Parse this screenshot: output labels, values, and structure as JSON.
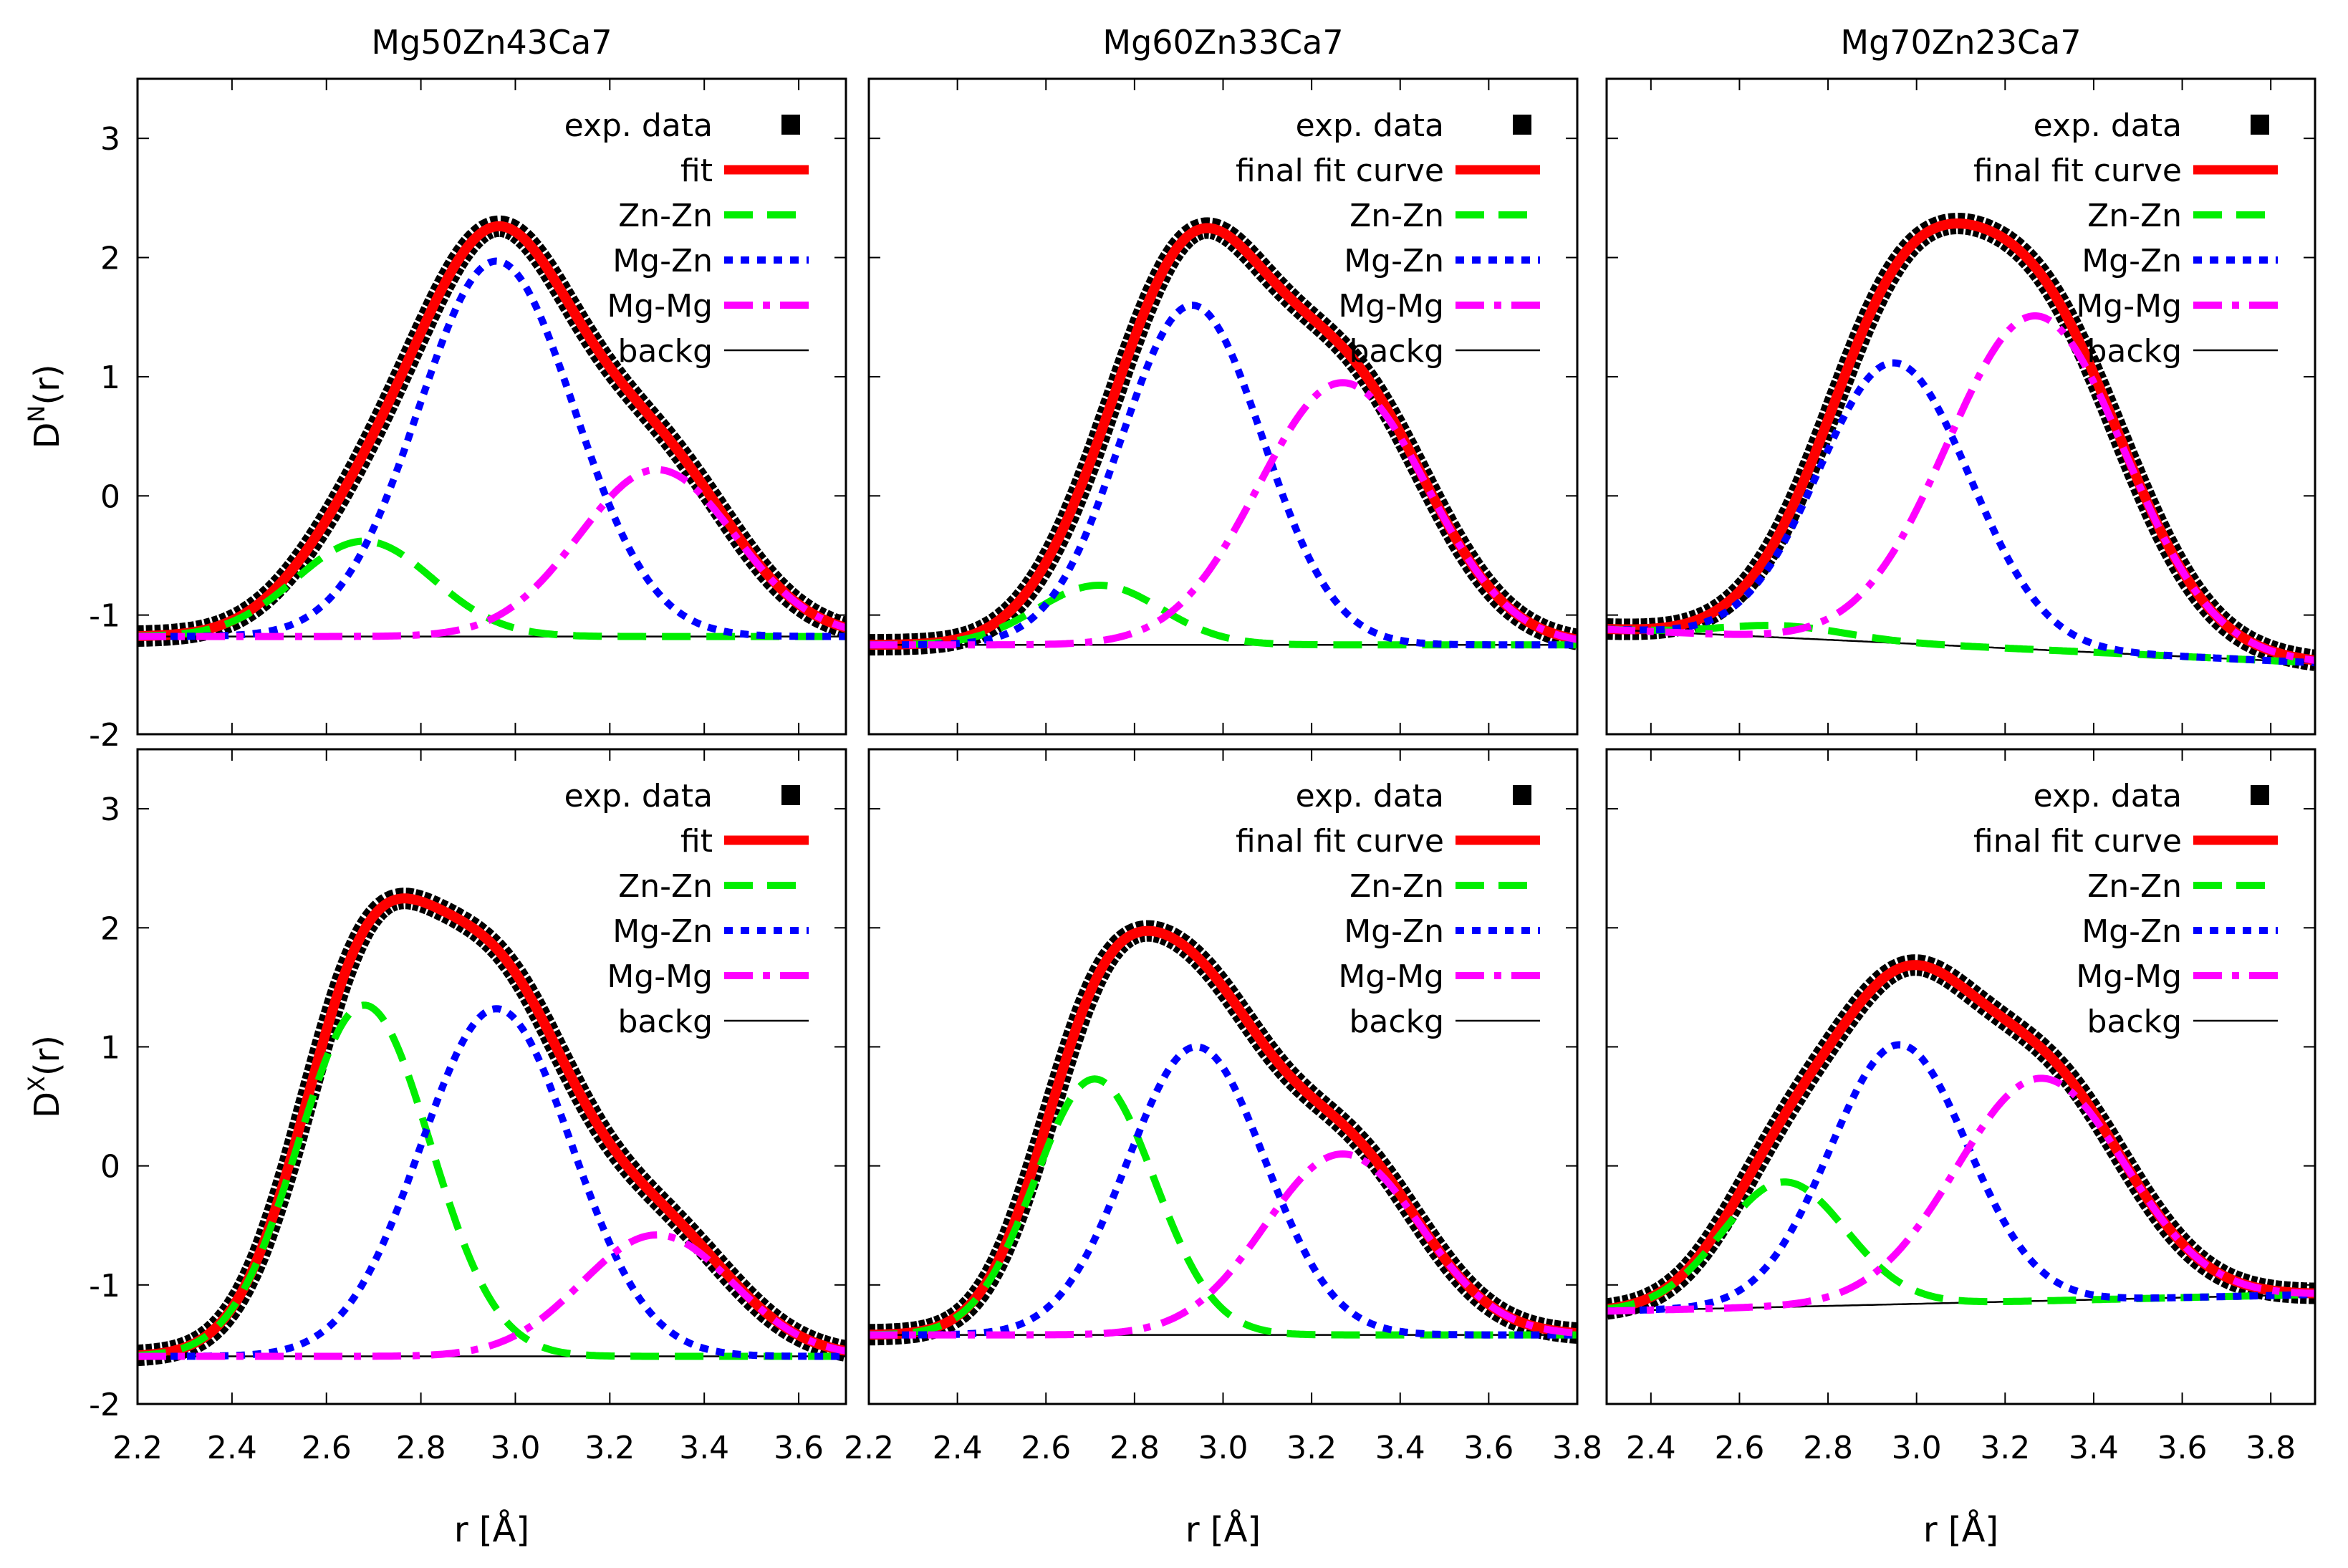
{
  "colors": {
    "exp": "#000000",
    "fit": "#ff0000",
    "znzn": "#00ee00",
    "mgzn": "#0000ff",
    "mgmg": "#ff00ff",
    "backg": "#000000"
  },
  "chart_data": [
    {
      "type": "line",
      "title": "Mg50Zn43Ca7",
      "ylabel": "DN(r)",
      "xlabel": "",
      "xlim": [
        2.2,
        3.7
      ],
      "ylim": [
        -2,
        3.5
      ],
      "xticks": [],
      "yticks": [
        "3",
        "2",
        "1",
        "0",
        "-1",
        "-2"
      ],
      "legend": [
        "exp. data",
        "fit",
        "Zn-Zn",
        "Mg-Zn",
        "Mg-Mg",
        "backg"
      ],
      "background": [
        [
          2.2,
          -1.18
        ],
        [
          3.7,
          -1.18
        ]
      ],
      "peaks": {
        "Zn-Zn": {
          "center": 2.68,
          "height": 0.8,
          "width": 0.145
        },
        "Mg-Zn": {
          "center": 2.96,
          "height": 3.15,
          "width": 0.165
        },
        "Mg-Mg": {
          "center": 3.3,
          "height": 1.4,
          "width": 0.165
        }
      }
    },
    {
      "type": "line",
      "title": "Mg60Zn33Ca7",
      "ylabel": "",
      "xlabel": "",
      "xlim": [
        2.2,
        3.8
      ],
      "ylim": [
        -2,
        3.5
      ],
      "xticks": [],
      "yticks": [],
      "legend": [
        "exp. data",
        "final fit curve",
        "Zn-Zn",
        "Mg-Zn",
        "Mg-Mg",
        "backg"
      ],
      "background": [
        [
          2.2,
          -1.25
        ],
        [
          3.8,
          -1.25
        ]
      ],
      "peaks": {
        "Zn-Zn": {
          "center": 2.72,
          "height": 0.5,
          "width": 0.14
        },
        "Mg-Zn": {
          "center": 2.93,
          "height": 2.85,
          "width": 0.16
        },
        "Mg-Mg": {
          "center": 3.27,
          "height": 2.2,
          "width": 0.19
        }
      }
    },
    {
      "type": "line",
      "title": "Mg70Zn23Ca7",
      "ylabel": "",
      "xlabel": "",
      "xlim": [
        2.3,
        3.9
      ],
      "ylim": [
        -2,
        3.5
      ],
      "xticks": [],
      "yticks": [],
      "legend": [
        "exp. data",
        "final fit curve",
        "Zn-Zn",
        "Mg-Zn",
        "Mg-Mg",
        "backg"
      ],
      "background": [
        [
          2.3,
          -1.12
        ],
        [
          3.9,
          -1.4
        ]
      ],
      "peaks": {
        "Zn-Zn": {
          "center": 2.7,
          "height": 0.1,
          "width": 0.14
        },
        "Mg-Zn": {
          "center": 2.95,
          "height": 2.35,
          "width": 0.17
        },
        "Mg-Mg": {
          "center": 3.27,
          "height": 2.8,
          "width": 0.2
        }
      }
    },
    {
      "type": "line",
      "title": "",
      "ylabel": "DX(r)",
      "xlabel": "r [Å]",
      "xlim": [
        2.2,
        3.7
      ],
      "ylim": [
        -2,
        3.5
      ],
      "xticks": [
        "2.2",
        "2.4",
        "2.6",
        "2.8",
        "3.0",
        "3.2",
        "3.4",
        "3.6"
      ],
      "yticks": [
        "3",
        "2",
        "1",
        "0",
        "-1",
        "-2"
      ],
      "legend": [
        "exp. data",
        "fit",
        "Zn-Zn",
        "Mg-Zn",
        "Mg-Mg",
        "backg"
      ],
      "background": [
        [
          2.2,
          -1.6
        ],
        [
          3.7,
          -1.6
        ]
      ],
      "peaks": {
        "Zn-Zn": {
          "center": 2.68,
          "height": 2.95,
          "width": 0.14
        },
        "Mg-Zn": {
          "center": 2.96,
          "height": 2.92,
          "width": 0.16
        },
        "Mg-Mg": {
          "center": 3.3,
          "height": 1.02,
          "width": 0.16
        }
      }
    },
    {
      "type": "line",
      "title": "",
      "ylabel": "",
      "xlabel": "r [Å]",
      "xlim": [
        2.2,
        3.8
      ],
      "ylim": [
        -2,
        3.5
      ],
      "xticks": [
        "2.2",
        "2.4",
        "2.6",
        "2.8",
        "3.0",
        "3.2",
        "3.4",
        "3.6",
        "3.8"
      ],
      "yticks": [],
      "legend": [
        "exp. data",
        "final fit curve",
        "Zn-Zn",
        "Mg-Zn",
        "Mg-Mg",
        "backg"
      ],
      "background": [
        [
          2.2,
          -1.42
        ],
        [
          3.8,
          -1.42
        ]
      ],
      "peaks": {
        "Zn-Zn": {
          "center": 2.71,
          "height": 2.15,
          "width": 0.135
        },
        "Mg-Zn": {
          "center": 2.94,
          "height": 2.42,
          "width": 0.155
        },
        "Mg-Mg": {
          "center": 3.27,
          "height": 1.52,
          "width": 0.175
        }
      }
    },
    {
      "type": "line",
      "title": "",
      "ylabel": "",
      "xlabel": "r [Å]",
      "xlim": [
        2.3,
        3.9
      ],
      "ylim": [
        -2,
        3.5
      ],
      "xticks": [
        "2.4",
        "2.6",
        "2.8",
        "3.0",
        "3.2",
        "3.4",
        "3.6",
        "3.8"
      ],
      "yticks": [],
      "legend": [
        "exp. data",
        "final fit curve",
        "Zn-Zn",
        "Mg-Zn",
        "Mg-Mg",
        "backg"
      ],
      "background": [
        [
          2.3,
          -1.22
        ],
        [
          3.9,
          -1.08
        ]
      ],
      "peaks": {
        "Zn-Zn": {
          "center": 2.7,
          "height": 1.05,
          "width": 0.14
        },
        "Mg-Zn": {
          "center": 2.96,
          "height": 2.18,
          "width": 0.155
        },
        "Mg-Mg": {
          "center": 3.28,
          "height": 1.87,
          "width": 0.19
        }
      }
    }
  ]
}
